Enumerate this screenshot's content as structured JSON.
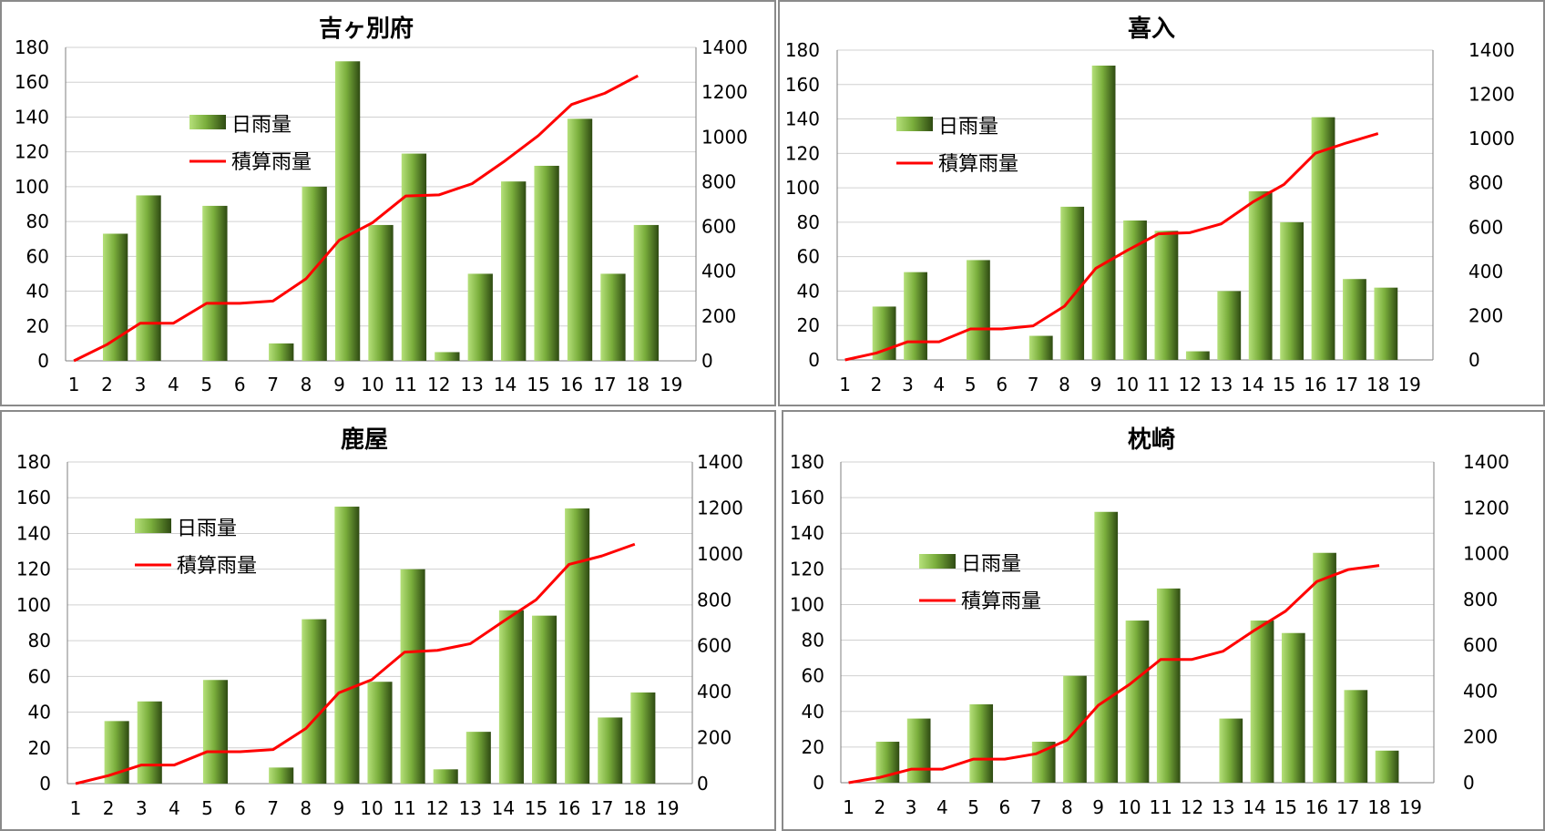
{
  "colors": {
    "bar_light": "#b5e07a",
    "bar_mid": "#7aae3c",
    "bar_dark": "#2e4a12",
    "line": "#ff0000"
  },
  "legend": {
    "bar": "日雨量",
    "line": "積算雨量"
  },
  "chart_data": [
    {
      "type": "bar+line",
      "title": "吉ヶ別府",
      "categories": [
        "1",
        "2",
        "3",
        "4",
        "5",
        "6",
        "7",
        "8",
        "9",
        "10",
        "11",
        "12",
        "13",
        "14",
        "15",
        "16",
        "17",
        "18",
        "19"
      ],
      "ylim": [
        0,
        180
      ],
      "y2lim": [
        0,
        1400
      ],
      "yticks": [
        "0",
        "20",
        "40",
        "60",
        "80",
        "100",
        "120",
        "140",
        "160",
        "180"
      ],
      "y2ticks": [
        "0",
        "200",
        "400",
        "600",
        "800",
        "1000",
        "1200",
        "1400"
      ],
      "series": [
        {
          "name": "日雨量",
          "axis": "left",
          "values": [
            0,
            73,
            95,
            0,
            89,
            0,
            10,
            100,
            172,
            78,
            119,
            5,
            50,
            103,
            112,
            139,
            50,
            78,
            null
          ]
        },
        {
          "name": "積算雨量",
          "axis": "right",
          "values": [
            0,
            73,
            168,
            168,
            257,
            257,
            267,
            367,
            539,
            617,
            736,
            741,
            791,
            894,
            1006,
            1145,
            1195,
            1273,
            null
          ]
        }
      ]
    },
    {
      "type": "bar+line",
      "title": "喜入",
      "categories": [
        "1",
        "2",
        "3",
        "4",
        "5",
        "6",
        "7",
        "8",
        "9",
        "10",
        "11",
        "12",
        "13",
        "14",
        "15",
        "16",
        "17",
        "18",
        "19"
      ],
      "ylim": [
        0,
        180
      ],
      "y2lim": [
        0,
        1400
      ],
      "yticks": [
        "0",
        "20",
        "40",
        "60",
        "80",
        "100",
        "120",
        "140",
        "160",
        "180"
      ],
      "y2ticks": [
        "0",
        "200",
        "400",
        "600",
        "800",
        "1000",
        "1200",
        "1400"
      ],
      "series": [
        {
          "name": "日雨量",
          "axis": "left",
          "values": [
            0,
            31,
            51,
            0,
            58,
            0,
            14,
            89,
            171,
            81,
            75,
            5,
            40,
            98,
            80,
            141,
            47,
            42,
            null
          ]
        },
        {
          "name": "積算雨量",
          "axis": "right",
          "values": [
            0,
            31,
            82,
            82,
            140,
            140,
            154,
            243,
            414,
            495,
            570,
            575,
            615,
            713,
            793,
            934,
            981,
            1023,
            null
          ]
        }
      ]
    },
    {
      "type": "bar+line",
      "title": "鹿屋",
      "categories": [
        "1",
        "2",
        "3",
        "4",
        "5",
        "6",
        "7",
        "8",
        "9",
        "10",
        "11",
        "12",
        "13",
        "14",
        "15",
        "16",
        "17",
        "18",
        "19"
      ],
      "ylim": [
        0,
        180
      ],
      "y2lim": [
        0,
        1400
      ],
      "yticks": [
        "0",
        "20",
        "40",
        "60",
        "80",
        "100",
        "120",
        "140",
        "160",
        "180"
      ],
      "y2ticks": [
        "0",
        "200",
        "400",
        "600",
        "800",
        "1000",
        "1200",
        "1400"
      ],
      "series": [
        {
          "name": "日雨量",
          "axis": "left",
          "values": [
            0,
            35,
            46,
            0,
            58,
            0,
            9,
            92,
            155,
            57,
            120,
            8,
            29,
            97,
            94,
            154,
            37,
            51,
            null
          ]
        },
        {
          "name": "積算雨量",
          "axis": "right",
          "values": [
            0,
            35,
            81,
            81,
            139,
            139,
            148,
            240,
            395,
            452,
            572,
            580,
            609,
            706,
            800,
            954,
            991,
            1042,
            null
          ]
        }
      ]
    },
    {
      "type": "bar+line",
      "title": "枕崎",
      "categories": [
        "1",
        "2",
        "3",
        "4",
        "5",
        "6",
        "7",
        "8",
        "9",
        "10",
        "11",
        "12",
        "13",
        "14",
        "15",
        "16",
        "17",
        "18",
        "19"
      ],
      "ylim": [
        0,
        180
      ],
      "y2lim": [
        0,
        1400
      ],
      "yticks": [
        "0",
        "20",
        "40",
        "60",
        "80",
        "100",
        "120",
        "140",
        "160",
        "180"
      ],
      "y2ticks": [
        "0",
        "200",
        "400",
        "600",
        "800",
        "1000",
        "1200",
        "1400"
      ],
      "series": [
        {
          "name": "日雨量",
          "axis": "left",
          "values": [
            0,
            23,
            36,
            0,
            44,
            0,
            23,
            60,
            152,
            91,
            109,
            0,
            36,
            91,
            84,
            129,
            52,
            18,
            null
          ]
        },
        {
          "name": "積算雨量",
          "axis": "right",
          "values": [
            0,
            23,
            59,
            59,
            103,
            103,
            126,
            186,
            338,
            429,
            538,
            538,
            574,
            665,
            749,
            878,
            930,
            948,
            null
          ]
        }
      ]
    }
  ]
}
